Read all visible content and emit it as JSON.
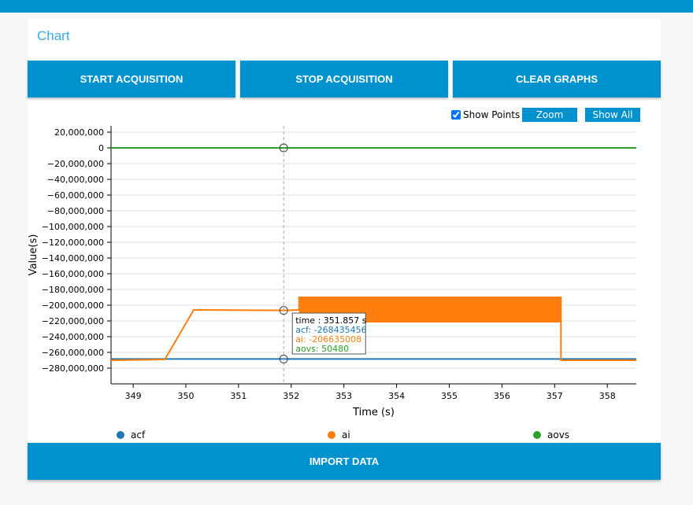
{
  "header": {
    "title": "Chart"
  },
  "buttons": {
    "start": "START ACQUISITION",
    "stop": "STOP ACQUISITION",
    "clear": "CLEAR GRAPHS",
    "import": "IMPORT DATA"
  },
  "controls": {
    "show_points": "Show Points",
    "zoom": "Zoom",
    "show_all": "Show All"
  },
  "tooltip": {
    "time": "time : 351.857 s",
    "acf": "acf: -268435456",
    "ai": "ai: -206635008",
    "aovs": "aovs: 50480"
  },
  "colors": {
    "acf": "#1f77b4",
    "ai": "#ff7f0e",
    "aovs": "#2ca02c",
    "accent": "#0091cf"
  },
  "chart_data": {
    "type": "line",
    "xlabel": "Time (s)",
    "ylabel": "Value(s)",
    "xlim": [
      348.58,
      358.55
    ],
    "ylim": [
      -300000000,
      28000000
    ],
    "xticks": [
      349,
      350,
      351,
      352,
      353,
      354,
      355,
      356,
      357,
      358
    ],
    "yticks": [
      20000000,
      0,
      -20000000,
      -40000000,
      -60000000,
      -80000000,
      -100000000,
      -120000000,
      -140000000,
      -160000000,
      -180000000,
      -200000000,
      -220000000,
      -240000000,
      -260000000,
      -280000000
    ],
    "ytick_labels": [
      "20,000,000",
      "0",
      "−20,000,000",
      "−40,000,000",
      "−60,000,000",
      "−80,000,000",
      "−100,000,000",
      "−120,000,000",
      "−140,000,000",
      "−160,000,000",
      "−180,000,000",
      "−200,000,000",
      "−220,000,000",
      "−240,000,000",
      "−260,000,000",
      "−280,000,000"
    ],
    "grid": true,
    "cursor_x": 351.857,
    "series": [
      {
        "name": "acf",
        "x": [
          348.58,
          358.55
        ],
        "y": [
          -268435456,
          -268435456
        ]
      },
      {
        "name": "ai",
        "x": [
          348.58,
          349.6,
          350.15,
          351.857,
          352.15,
          352.15,
          357.12,
          357.12,
          358.55
        ],
        "y": [
          -270000000,
          -269000000,
          -206000000,
          -206635008,
          -206000000,
          -190000000,
          -190000000,
          -270000000,
          -270000000
        ],
        "band": {
          "x": [
            352.15,
            357.12
          ],
          "y": [
            -222000000,
            -189000000
          ]
        }
      },
      {
        "name": "aovs",
        "x": [
          348.58,
          358.55
        ],
        "y": [
          50480,
          50480
        ]
      }
    ],
    "legend": [
      "acf",
      "ai",
      "aovs"
    ]
  }
}
